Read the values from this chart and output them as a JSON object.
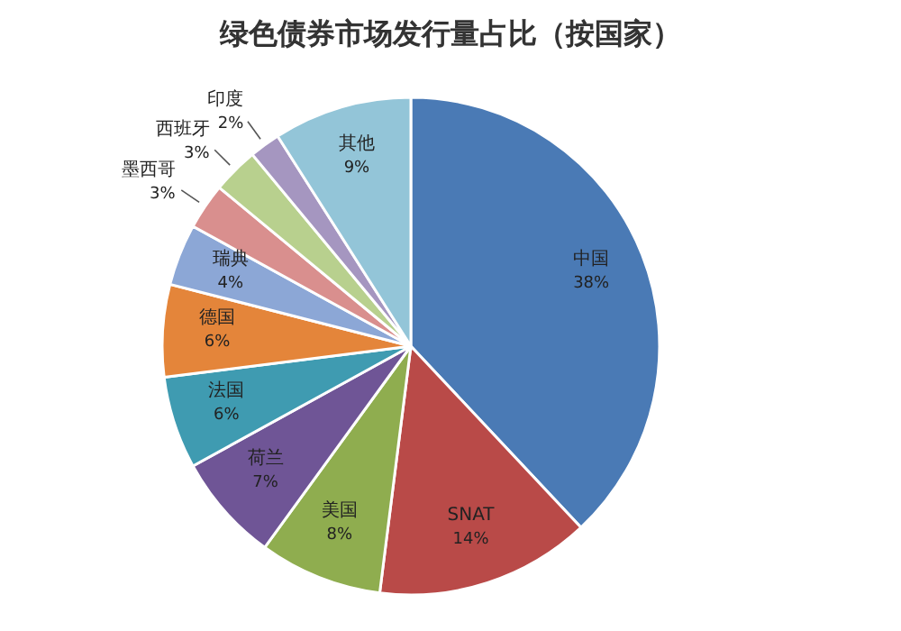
{
  "chart_data": {
    "type": "pie",
    "title": "绿色债券市场发行量占比（按国家）",
    "categories": [
      "中国",
      "SNAT",
      "美国",
      "荷兰",
      "法国",
      "德国",
      "瑞典",
      "墨西哥",
      "西班牙",
      "印度",
      "其他"
    ],
    "values": [
      38,
      14,
      8,
      7,
      6,
      6,
      4,
      3,
      3,
      2,
      9
    ],
    "value_labels": [
      "38%",
      "14%",
      "8%",
      "7%",
      "6%",
      "6%",
      "4%",
      "3%",
      "3%",
      "2%",
      "9%"
    ],
    "colors": [
      "#4a7ab5",
      "#b94a48",
      "#8fad4f",
      "#6f5596",
      "#3f9bb1",
      "#e4853a",
      "#8ca7d6",
      "#d98f8e",
      "#b8d08e",
      "#a596c0",
      "#93c5d8"
    ]
  }
}
